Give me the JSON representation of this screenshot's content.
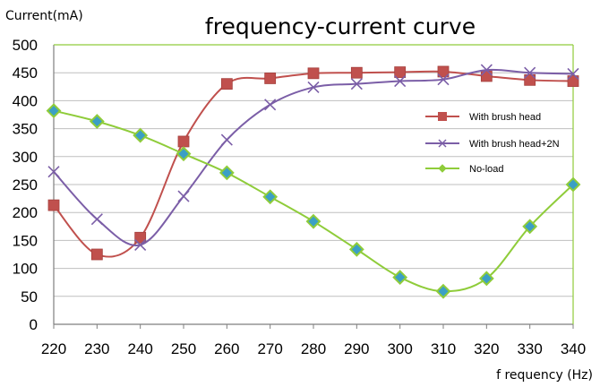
{
  "chart_data": {
    "type": "line",
    "title": "frequency-current curve",
    "ylabel": "Current(mA)",
    "xlabel": "f requency (Hz)",
    "x": [
      220,
      230,
      240,
      250,
      260,
      270,
      280,
      290,
      300,
      310,
      320,
      330,
      340
    ],
    "ylim": [
      0,
      500
    ],
    "yticks": [
      0,
      50,
      100,
      150,
      200,
      250,
      300,
      350,
      400,
      450,
      500
    ],
    "grid": true,
    "legend_position": "right",
    "series": [
      {
        "name": "With brush head",
        "color": "#c0504d",
        "marker": "square",
        "values": [
          213,
          125,
          155,
          327,
          430,
          440,
          449,
          450,
          451,
          452,
          444,
          437,
          435
        ]
      },
      {
        "name": "With brush head+2N",
        "color": "#7b5ea7",
        "marker": "x",
        "values": [
          273,
          188,
          142,
          229,
          330,
          393,
          424,
          430,
          435,
          438,
          455,
          450,
          448
        ]
      },
      {
        "name": "No-load",
        "color": "#8fcc3a",
        "marker": "diamond",
        "values": [
          382,
          363,
          338,
          305,
          271,
          228,
          184,
          134,
          84,
          59,
          82,
          175,
          250
        ]
      }
    ]
  }
}
